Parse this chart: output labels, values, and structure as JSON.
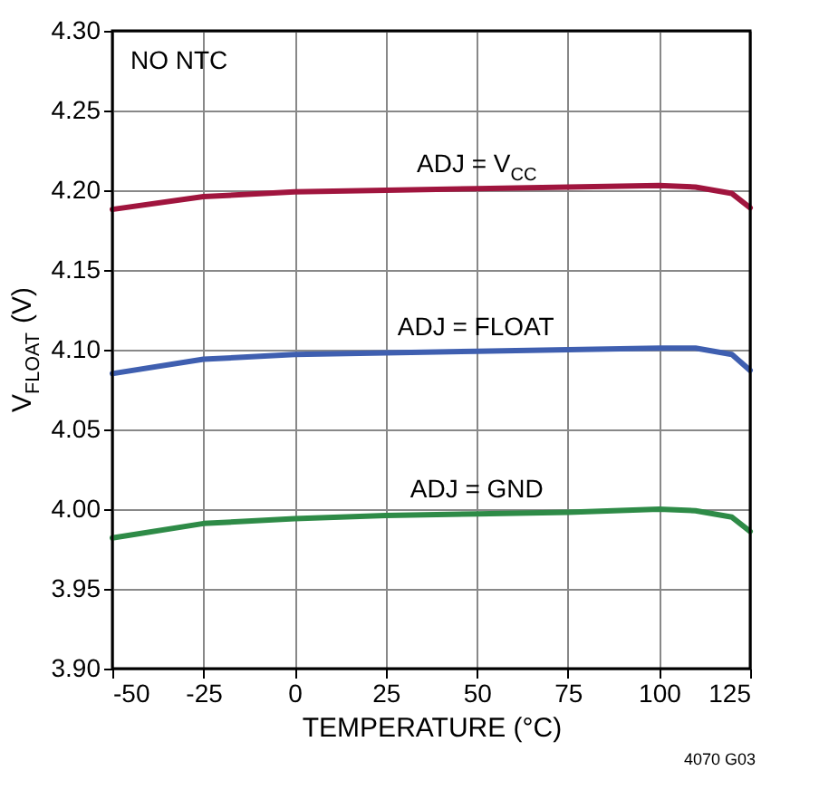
{
  "chart_data": {
    "type": "line",
    "xlabel": "TEMPERATURE (°C)",
    "ylabel": "V$_{FLOAT}$ (V)",
    "x": [
      -50,
      -25,
      0,
      25,
      50,
      75,
      100,
      110,
      120,
      125
    ],
    "series": [
      {
        "name": "ADJ = V$_{CC}$",
        "color": "#a0153e",
        "values": [
          4.188,
          4.196,
          4.199,
          4.2,
          4.201,
          4.202,
          4.203,
          4.202,
          4.198,
          4.189
        ]
      },
      {
        "name": "ADJ = FLOAT",
        "color": "#3f5fb0",
        "values": [
          4.085,
          4.094,
          4.097,
          4.098,
          4.099,
          4.1,
          4.101,
          4.101,
          4.097,
          4.087
        ]
      },
      {
        "name": "ADJ = GND",
        "color": "#2e8b47",
        "values": [
          3.982,
          3.991,
          3.994,
          3.996,
          3.997,
          3.998,
          4.0,
          3.999,
          3.995,
          3.986
        ]
      }
    ],
    "xlim": [
      -50,
      125
    ],
    "xticks": [
      -50,
      -25,
      0,
      25,
      50,
      75,
      100,
      125
    ],
    "ylim": [
      3.9,
      4.3
    ],
    "yticks": [
      {
        "value": 3.9,
        "label": "3.90"
      },
      {
        "value": 3.95,
        "label": "3.95"
      },
      {
        "value": 4.0,
        "label": "4.00"
      },
      {
        "value": 4.05,
        "label": "4.05"
      },
      {
        "value": 4.1,
        "label": "4.10"
      },
      {
        "value": 4.15,
        "label": "4.15"
      },
      {
        "value": 4.2,
        "label": "4.20"
      },
      {
        "value": 4.25,
        "label": "4.25"
      },
      {
        "value": 4.3,
        "label": "4.30"
      }
    ],
    "grid": true,
    "marker": "none",
    "line_style": "solid",
    "annotations": [
      "NO NTC",
      "4070 G03"
    ]
  }
}
